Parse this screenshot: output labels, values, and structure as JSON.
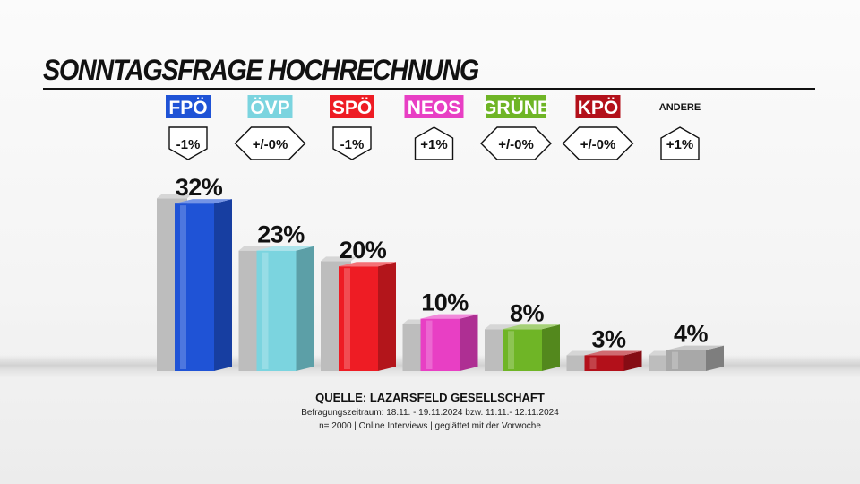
{
  "title": "SONNTAGSFRAGE HOCHRECHNUNG",
  "chart_data": {
    "type": "bar",
    "categories": [
      "FPÖ",
      "ÖVP",
      "SPÖ",
      "NEOS",
      "GRÜNE",
      "KPÖ",
      "ANDERE"
    ],
    "values": [
      32,
      23,
      20,
      10,
      8,
      3,
      4
    ],
    "value_labels": [
      "32%",
      "23%",
      "20%",
      "10%",
      "8%",
      "3%",
      "4%"
    ],
    "previous_values": [
      33,
      23,
      21,
      9,
      8,
      3,
      3
    ],
    "changes": [
      "-1%",
      "+/-0%",
      "-1%",
      "+1%",
      "+/-0%",
      "+/-0%",
      "+1%"
    ],
    "change_direction": [
      "down",
      "same",
      "down",
      "up",
      "same",
      "same",
      "up"
    ],
    "colors": [
      "#1f53d6",
      "#7bd4df",
      "#ee1c24",
      "#e83fc4",
      "#6fb526",
      "#b3101a",
      "#a8a8a8"
    ],
    "previous_color": "#bdbdbd",
    "ylim": [
      0,
      35
    ]
  },
  "source": {
    "line1": "QUELLE: LAZARSFELD GESELLSCHAFT",
    "line2": "Befragungszeitraum: 18.11. - 19.11.2024 bzw. 11.11.- 12.11.2024",
    "line3": "n= 2000 | Online Interviews | geglättet mit der Vorwoche"
  }
}
